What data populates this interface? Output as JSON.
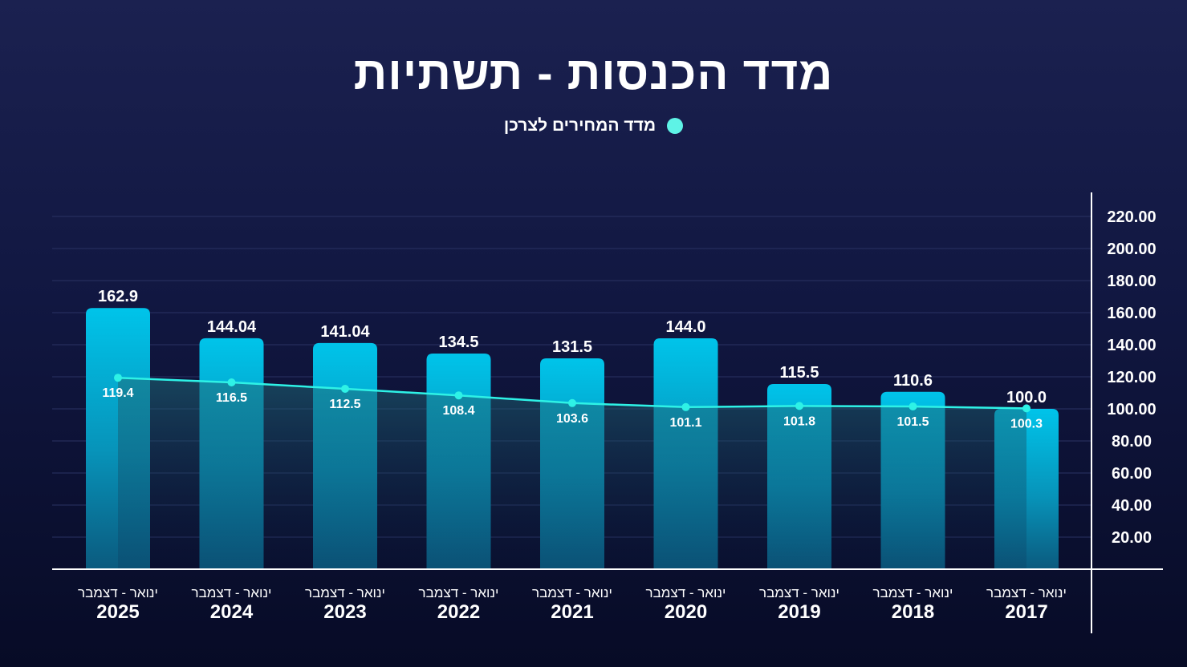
{
  "chart_data": {
    "type": "bar",
    "title": "מדד הכנסות - תשתיות",
    "categories": [
      "2025",
      "2024",
      "2023",
      "2022",
      "2021",
      "2020",
      "2019",
      "2018",
      "2017"
    ],
    "category_sublabel": "ינואר - דצמבר",
    "series": [
      {
        "name": "מדד הכנסות - תשתיות",
        "type": "bar",
        "values": [
          162.9,
          144.04,
          141.04,
          134.5,
          131.5,
          144.0,
          115.5,
          110.6,
          100.0
        ],
        "labels": [
          "162.9",
          "144.04",
          "141.04",
          "134.5",
          "131.5",
          "144.0",
          "115.5",
          "110.6",
          "100.0"
        ]
      },
      {
        "name": "מדד המחירים לצרכן",
        "type": "line",
        "values": [
          119.4,
          116.5,
          112.5,
          108.4,
          103.6,
          101.1,
          101.8,
          101.5,
          100.3
        ],
        "labels": [
          "119.4",
          "116.5",
          "112.5",
          "108.4",
          "103.6",
          "101.1",
          "101.8",
          "101.5",
          "100.3"
        ]
      }
    ],
    "yticks": [
      "20.00",
      "40.00",
      "60.00",
      "80.00",
      "100.00",
      "120.00",
      "140.00",
      "160.00",
      "180.00",
      "200.00",
      "220.00"
    ],
    "ylim": [
      0,
      220
    ],
    "yaxis_side": "right",
    "legend": {
      "label": "מדד המחירים לצרכן",
      "position": "top-center"
    },
    "grid": true,
    "colors": {
      "bar_top": "#00c2e8",
      "bar_bottom": "#0a5f84",
      "line": "#2ef2e6",
      "legend_dot": "#5ef3e6",
      "grid": "#2a3263",
      "axis": "#ffffff"
    }
  }
}
